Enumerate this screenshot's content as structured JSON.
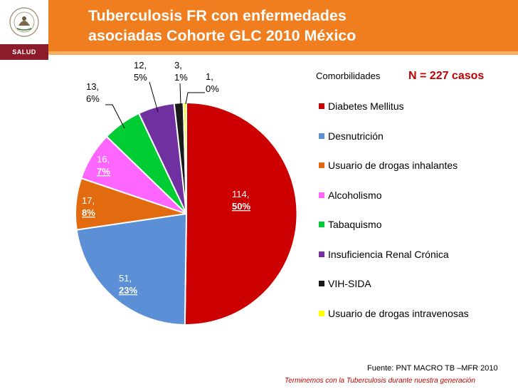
{
  "header": {
    "title_line1": "Tuberculosis FR con enfermedades",
    "title_line2": "asociadas Cohorte GLC 2010 México",
    "logo_label": "SALUD"
  },
  "colors": {
    "header_orange": "#f07d1e",
    "title_text": "#ffffff",
    "n_text": "#c00000"
  },
  "legend": {
    "title": "Comorbilidades",
    "n_label": "N = 227 casos"
  },
  "source": "Fuente: PNT MACRO TB –MFR 2010",
  "footer_slogan": "Terminemos con la Tuberculosis durante nuestra generación",
  "chart_data": {
    "type": "pie",
    "title": "",
    "total": 227,
    "series": [
      {
        "name": "Diabetes Mellitus",
        "value": 114,
        "percent": "50%",
        "color": "#cc0000"
      },
      {
        "name": "Desnutrición",
        "value": 51,
        "percent": "23%",
        "color": "#5b8fd6"
      },
      {
        "name": "Usuario de drogas inhalantes",
        "value": 17,
        "percent": "8%",
        "color": "#e26b10"
      },
      {
        "name": "Alcoholismo",
        "value": 16,
        "percent": "7%",
        "color": "#ff66ff"
      },
      {
        "name": "Tabaquismo",
        "value": 13,
        "percent": "6%",
        "color": "#00cc33"
      },
      {
        "name": "Insuficiencia Renal Crónica",
        "value": 12,
        "percent": "5%",
        "color": "#7030a0"
      },
      {
        "name": "VIH-SIDA",
        "value": 3,
        "percent": "1%",
        "color": "#1a1a1a"
      },
      {
        "name": "Usuario de drogas intravenosas",
        "value": 1,
        "percent": "0%",
        "color": "#ffff00"
      }
    ],
    "data_labels": [
      "114,",
      "50%",
      "51,",
      "23%",
      "17,",
      "8%",
      "16,",
      "7%",
      "13,",
      "6%",
      "12,",
      "5%",
      "3,",
      "1%",
      "1,",
      "0%"
    ],
    "legend_position": "right"
  }
}
